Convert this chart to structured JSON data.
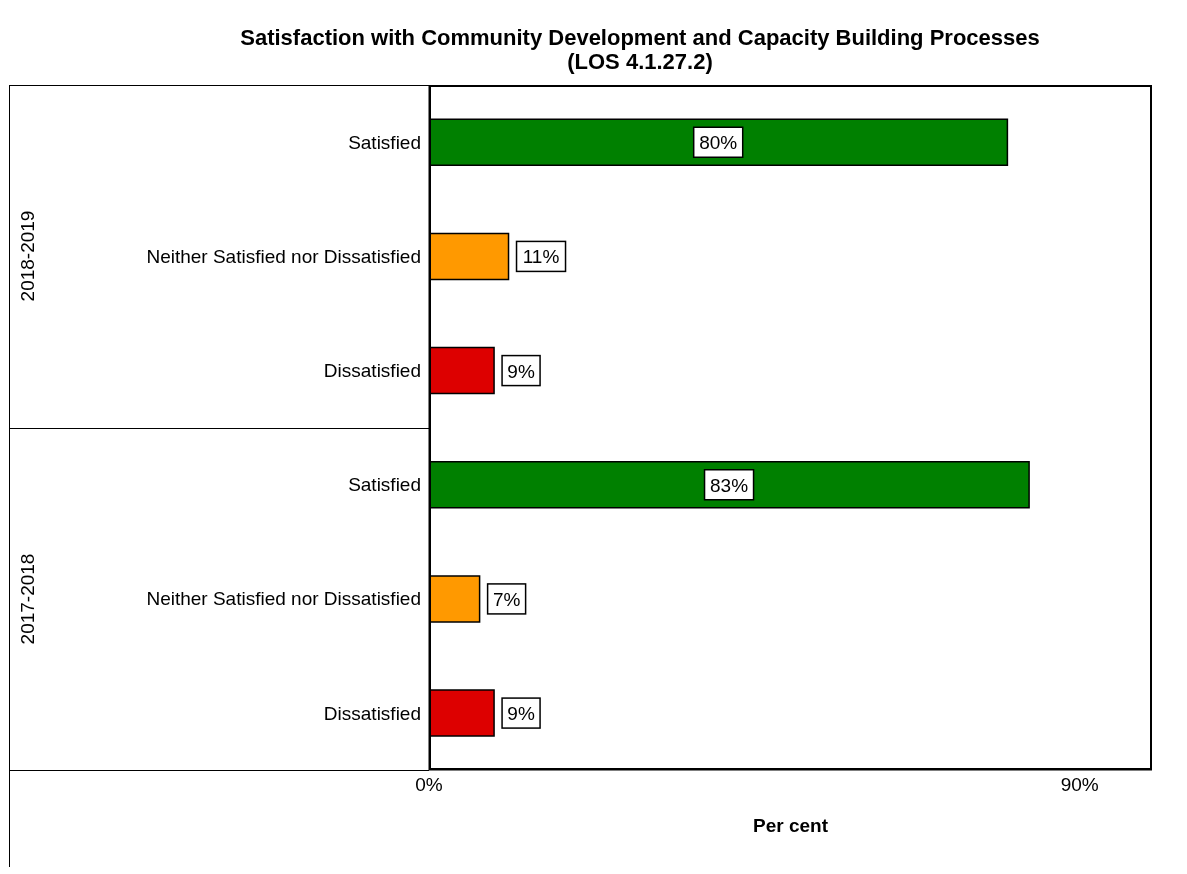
{
  "chart_data": {
    "type": "bar",
    "orientation": "horizontal",
    "title": "Satisfaction with Community Development and Capacity Building Processes (LOS 4.1.27.2)",
    "xlabel": "Per cent",
    "categories": [
      "Satisfied",
      "Neither Satisfied nor Dissatisfied",
      "Dissatisfied",
      "Satisfied",
      "Neither Satisfied nor Dissatisfied",
      "Dissatisfied"
    ],
    "values": [
      80,
      11,
      9,
      83,
      7,
      9
    ],
    "colors": [
      "#008000",
      "#ff9900",
      "#dd0000",
      "#008000",
      "#ff9900",
      "#dd0000"
    ],
    "value_labels": [
      "80%",
      "11%",
      "9%",
      "83%",
      "7%",
      "9%"
    ],
    "annotations": [
      "2018-2019",
      "2017-2018"
    ],
    "xlim": [
      0,
      100
    ],
    "xticks": [
      {
        "value": 0,
        "label": "0%"
      },
      {
        "value": 90,
        "label": "90%"
      }
    ],
    "grid": false
  }
}
